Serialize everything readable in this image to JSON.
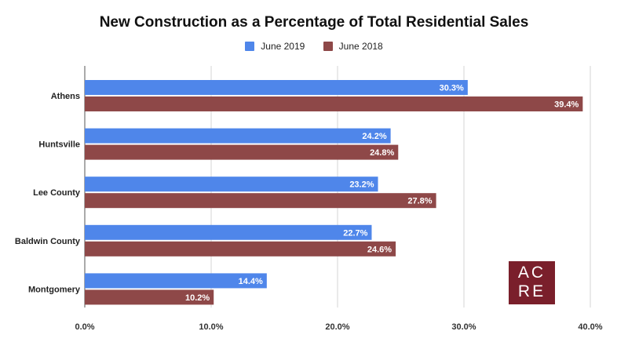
{
  "chart_data": {
    "type": "bar",
    "orientation": "horizontal",
    "title": "New Construction as a Percentage of Total Residential Sales",
    "categories": [
      "Athens",
      "Huntsville",
      "Lee County",
      "Baldwin County",
      "Montgomery"
    ],
    "series": [
      {
        "name": "June 2019",
        "values": [
          30.3,
          24.2,
          23.2,
          22.7,
          14.4
        ],
        "labels": [
          "30.3%",
          "24.2%",
          "23.2%",
          "22.7%",
          "14.4%"
        ]
      },
      {
        "name": "June 2018",
        "values": [
          39.4,
          24.8,
          27.8,
          24.6,
          10.2
        ],
        "labels": [
          "39.4%",
          "24.8%",
          "27.8%",
          "24.6%",
          "10.2%"
        ]
      }
    ],
    "xlim": [
      0,
      40
    ],
    "xticks": [
      0,
      10,
      20,
      30,
      40
    ],
    "xtick_labels": [
      "0.0%",
      "10.0%",
      "20.0%",
      "30.0%",
      "40.0%"
    ],
    "legend_position": "top",
    "grid": true
  },
  "colors": {
    "june_2019": "#4f86ea",
    "june_2018": "#8e4848",
    "grid": "#d6d6d6",
    "logo_bg": "#7a1f2b"
  },
  "logo": {
    "line1": "AC",
    "line2": "RE"
  }
}
